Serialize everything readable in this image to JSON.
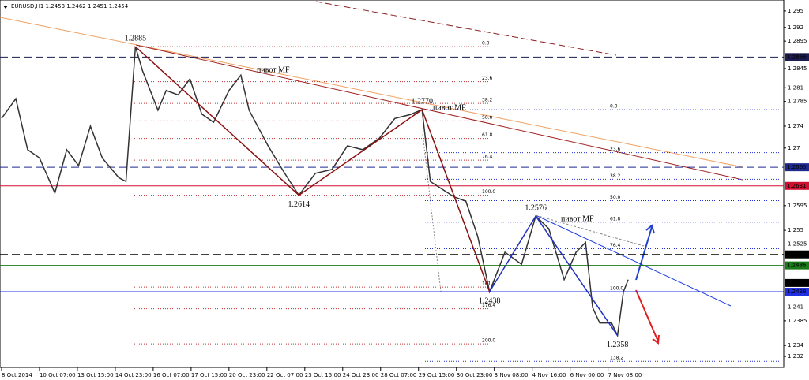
{
  "chart_data": {
    "type": "line",
    "title": "EURUSD,H1  1.2453 1.2462 1.2451 1.2454",
    "x": [
      0,
      12,
      22,
      32,
      45,
      55,
      65,
      75,
      85,
      99,
      105,
      113,
      119,
      132,
      139,
      149,
      159,
      169,
      179,
      192,
      202,
      209,
      225,
      239,
      251,
      265,
      279,
      292,
      305,
      319,
      332,
      345,
      355,
      362,
      372,
      382,
      392,
      402,
      412,
      425,
      439,
      451,
      462,
      475,
      485,
      493,
      499,
      505,
      515,
      520,
      525,
      529
    ],
    "values": [
      1.2754,
      1.279,
      1.2697,
      1.2682,
      1.2618,
      1.2697,
      1.2668,
      1.274,
      1.2682,
      1.2646,
      1.2639,
      1.2885,
      1.2841,
      1.2769,
      1.2805,
      1.2797,
      1.2826,
      1.2762,
      1.2747,
      1.2805,
      1.2833,
      1.2769,
      1.2704,
      1.2654,
      1.2614,
      1.2654,
      1.2661,
      1.2704,
      1.2697,
      1.2718,
      1.2754,
      1.2761,
      1.277,
      1.2639,
      1.2625,
      1.2611,
      1.2603,
      1.2539,
      1.2438,
      1.251,
      1.2488,
      1.2576,
      1.2553,
      1.246,
      1.251,
      1.2528,
      1.2409,
      1.2381,
      1.2381,
      1.2358,
      1.2438,
      1.246
    ],
    "color": "#333333",
    "xlim": [
      0,
      659
    ],
    "xticks": [
      {
        "value": 0,
        "label": "8 Oct 2014"
      },
      {
        "value": 32,
        "label": "10 Oct 07:00"
      },
      {
        "value": 64,
        "label": "13 Oct 15:00"
      },
      {
        "value": 96,
        "label": "14 Oct 23:00"
      },
      {
        "value": 128,
        "label": "16 Oct 07:00"
      },
      {
        "value": 160,
        "label": "17 Oct 15:00"
      },
      {
        "value": 192,
        "label": "20 Oct 23:00"
      },
      {
        "value": 224,
        "label": "22 Oct 07:00"
      },
      {
        "value": 256,
        "label": "23 Oct 15:00"
      },
      {
        "value": 288,
        "label": "24 Oct 23:00"
      },
      {
        "value": 320,
        "label": "28 Oct 07:00"
      },
      {
        "value": 352,
        "label": "29 Oct 15:00"
      },
      {
        "value": 384,
        "label": "30 Oct 23:00"
      },
      {
        "value": 416,
        "label": "3 Nov 08:00"
      },
      {
        "value": 448,
        "label": "4 Nov 16:00"
      },
      {
        "value": 480,
        "label": "6 Nov 00:00"
      },
      {
        "value": 512,
        "label": "7 Nov 08:00"
      }
    ],
    "ylim": [
      1.23,
      1.297
    ],
    "yticks": [
      1.295,
      1.292,
      1.2895,
      1.2845,
      1.281,
      1.2785,
      1.274,
      1.27,
      1.2595,
      1.255,
      1.2525,
      1.241,
      1.2385,
      1.234,
      1.232
    ],
    "levels": [
      {
        "value": 1.2866,
        "color": "#1c1c50",
        "style": "dashed"
      },
      {
        "value": 1.2665,
        "color": "#1e2a90",
        "style": "dashed"
      },
      {
        "value": 1.2631,
        "color": "#d01030",
        "style": "solid"
      },
      {
        "value": 1.2506,
        "color": "#000000",
        "style": "dashed"
      },
      {
        "value": 1.2486,
        "color": "#1a7a1a",
        "style": "solid"
      },
      {
        "value": 1.2454,
        "color": "#000000",
        "style": "none"
      },
      {
        "value": 1.2438,
        "color": "#2030e0",
        "style": "solid"
      }
    ],
    "pivots": [
      1.2885,
      1.2614,
      {
        "value": 1.277,
        "label": "1.2770"
      },
      1.2438,
      1.2576,
      1.2358
    ],
    "fibs": [
      {
        "color": "#c03030",
        "levels": [
          "0.0",
          "23.6",
          "38.2",
          "50.0",
          "61.8",
          "76.4",
          "100.0",
          "161.8",
          "176.4",
          "200.0"
        ]
      },
      {
        "color": "#2030d0",
        "levels": [
          "0.0",
          "23.6",
          "38.2",
          "50.0",
          "61.8",
          "76.4",
          "100.0",
          "138.2"
        ]
      }
    ],
    "annotations": [
      "пивот MF",
      "пивот MF",
      "пивот MF"
    ]
  }
}
